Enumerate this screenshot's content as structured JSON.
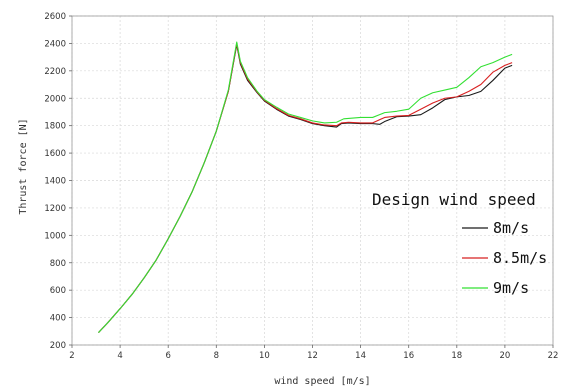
{
  "chart_data": {
    "type": "line",
    "xlabel": "wind speed [m/s]",
    "ylabel": "Thrust force  [N]",
    "xlim": [
      2,
      22
    ],
    "ylim": [
      200,
      2600
    ],
    "xticks": [
      "2",
      "4",
      "6",
      "8",
      "10",
      "12",
      "14",
      "16",
      "18",
      "20",
      "22"
    ],
    "yticks": [
      "200",
      "400",
      "600",
      "800",
      "1000",
      "1200",
      "1400",
      "1600",
      "1800",
      "2000",
      "2200",
      "2400",
      "2600"
    ],
    "grid": true,
    "legend": {
      "title": "Design wind speed",
      "placement": "right"
    },
    "series": [
      {
        "name": "8m/s",
        "color": "#1a1a1a",
        "points": [
          [
            3.1,
            290
          ],
          [
            3.5,
            365
          ],
          [
            4,
            465
          ],
          [
            4.5,
            570
          ],
          [
            5,
            690
          ],
          [
            5.5,
            820
          ],
          [
            6,
            975
          ],
          [
            6.5,
            1140
          ],
          [
            7,
            1320
          ],
          [
            7.5,
            1530
          ],
          [
            8,
            1760
          ],
          [
            8.5,
            2050
          ],
          [
            8.85,
            2390
          ],
          [
            9,
            2250
          ],
          [
            9.3,
            2130
          ],
          [
            9.7,
            2040
          ],
          [
            10,
            1980
          ],
          [
            10.5,
            1920
          ],
          [
            11,
            1870
          ],
          [
            11.5,
            1845
          ],
          [
            12,
            1815
          ],
          [
            12.5,
            1800
          ],
          [
            13,
            1790
          ],
          [
            13.2,
            1815
          ],
          [
            13.5,
            1820
          ],
          [
            14,
            1815
          ],
          [
            14.5,
            1815
          ],
          [
            14.8,
            1810
          ],
          [
            15,
            1830
          ],
          [
            15.5,
            1865
          ],
          [
            16,
            1870
          ],
          [
            16.5,
            1880
          ],
          [
            17,
            1930
          ],
          [
            17.5,
            1990
          ],
          [
            18,
            2010
          ],
          [
            18.5,
            2020
          ],
          [
            19,
            2050
          ],
          [
            19.5,
            2130
          ],
          [
            20,
            2220
          ],
          [
            20.3,
            2240
          ]
        ]
      },
      {
        "name": "8.5m/s",
        "color": "#d82020",
        "points": [
          [
            3.1,
            290
          ],
          [
            3.5,
            365
          ],
          [
            4,
            465
          ],
          [
            4.5,
            570
          ],
          [
            5,
            690
          ],
          [
            5.5,
            820
          ],
          [
            6,
            975
          ],
          [
            6.5,
            1140
          ],
          [
            7,
            1320
          ],
          [
            7.5,
            1530
          ],
          [
            8,
            1760
          ],
          [
            8.5,
            2050
          ],
          [
            8.85,
            2400
          ],
          [
            9,
            2260
          ],
          [
            9.3,
            2140
          ],
          [
            9.7,
            2045
          ],
          [
            10,
            1985
          ],
          [
            10.5,
            1925
          ],
          [
            11,
            1875
          ],
          [
            11.5,
            1850
          ],
          [
            12,
            1820
          ],
          [
            12.5,
            1805
          ],
          [
            13,
            1800
          ],
          [
            13.2,
            1820
          ],
          [
            13.5,
            1825
          ],
          [
            14,
            1820
          ],
          [
            14.5,
            1820
          ],
          [
            15,
            1860
          ],
          [
            15.5,
            1870
          ],
          [
            16,
            1875
          ],
          [
            16.5,
            1920
          ],
          [
            17,
            1965
          ],
          [
            17.5,
            2000
          ],
          [
            18,
            2010
          ],
          [
            18.5,
            2050
          ],
          [
            19,
            2100
          ],
          [
            19.5,
            2190
          ],
          [
            20,
            2240
          ],
          [
            20.3,
            2260
          ]
        ]
      },
      {
        "name": "9m/s",
        "color": "#33e033",
        "points": [
          [
            3.1,
            290
          ],
          [
            3.5,
            365
          ],
          [
            4,
            465
          ],
          [
            4.5,
            570
          ],
          [
            5,
            690
          ],
          [
            5.5,
            820
          ],
          [
            6,
            975
          ],
          [
            6.5,
            1140
          ],
          [
            7,
            1320
          ],
          [
            7.5,
            1530
          ],
          [
            8,
            1760
          ],
          [
            8.5,
            2060
          ],
          [
            8.85,
            2410
          ],
          [
            9,
            2270
          ],
          [
            9.3,
            2150
          ],
          [
            9.7,
            2050
          ],
          [
            10,
            1990
          ],
          [
            10.5,
            1935
          ],
          [
            11,
            1885
          ],
          [
            11.5,
            1860
          ],
          [
            12,
            1835
          ],
          [
            12.5,
            1820
          ],
          [
            13,
            1825
          ],
          [
            13.3,
            1850
          ],
          [
            14,
            1860
          ],
          [
            14.5,
            1860
          ],
          [
            15,
            1895
          ],
          [
            15.5,
            1905
          ],
          [
            16,
            1920
          ],
          [
            16.5,
            2000
          ],
          [
            17,
            2040
          ],
          [
            17.5,
            2060
          ],
          [
            18,
            2080
          ],
          [
            18.5,
            2150
          ],
          [
            19,
            2230
          ],
          [
            19.5,
            2260
          ],
          [
            20,
            2300
          ],
          [
            20.3,
            2320
          ]
        ]
      }
    ]
  }
}
